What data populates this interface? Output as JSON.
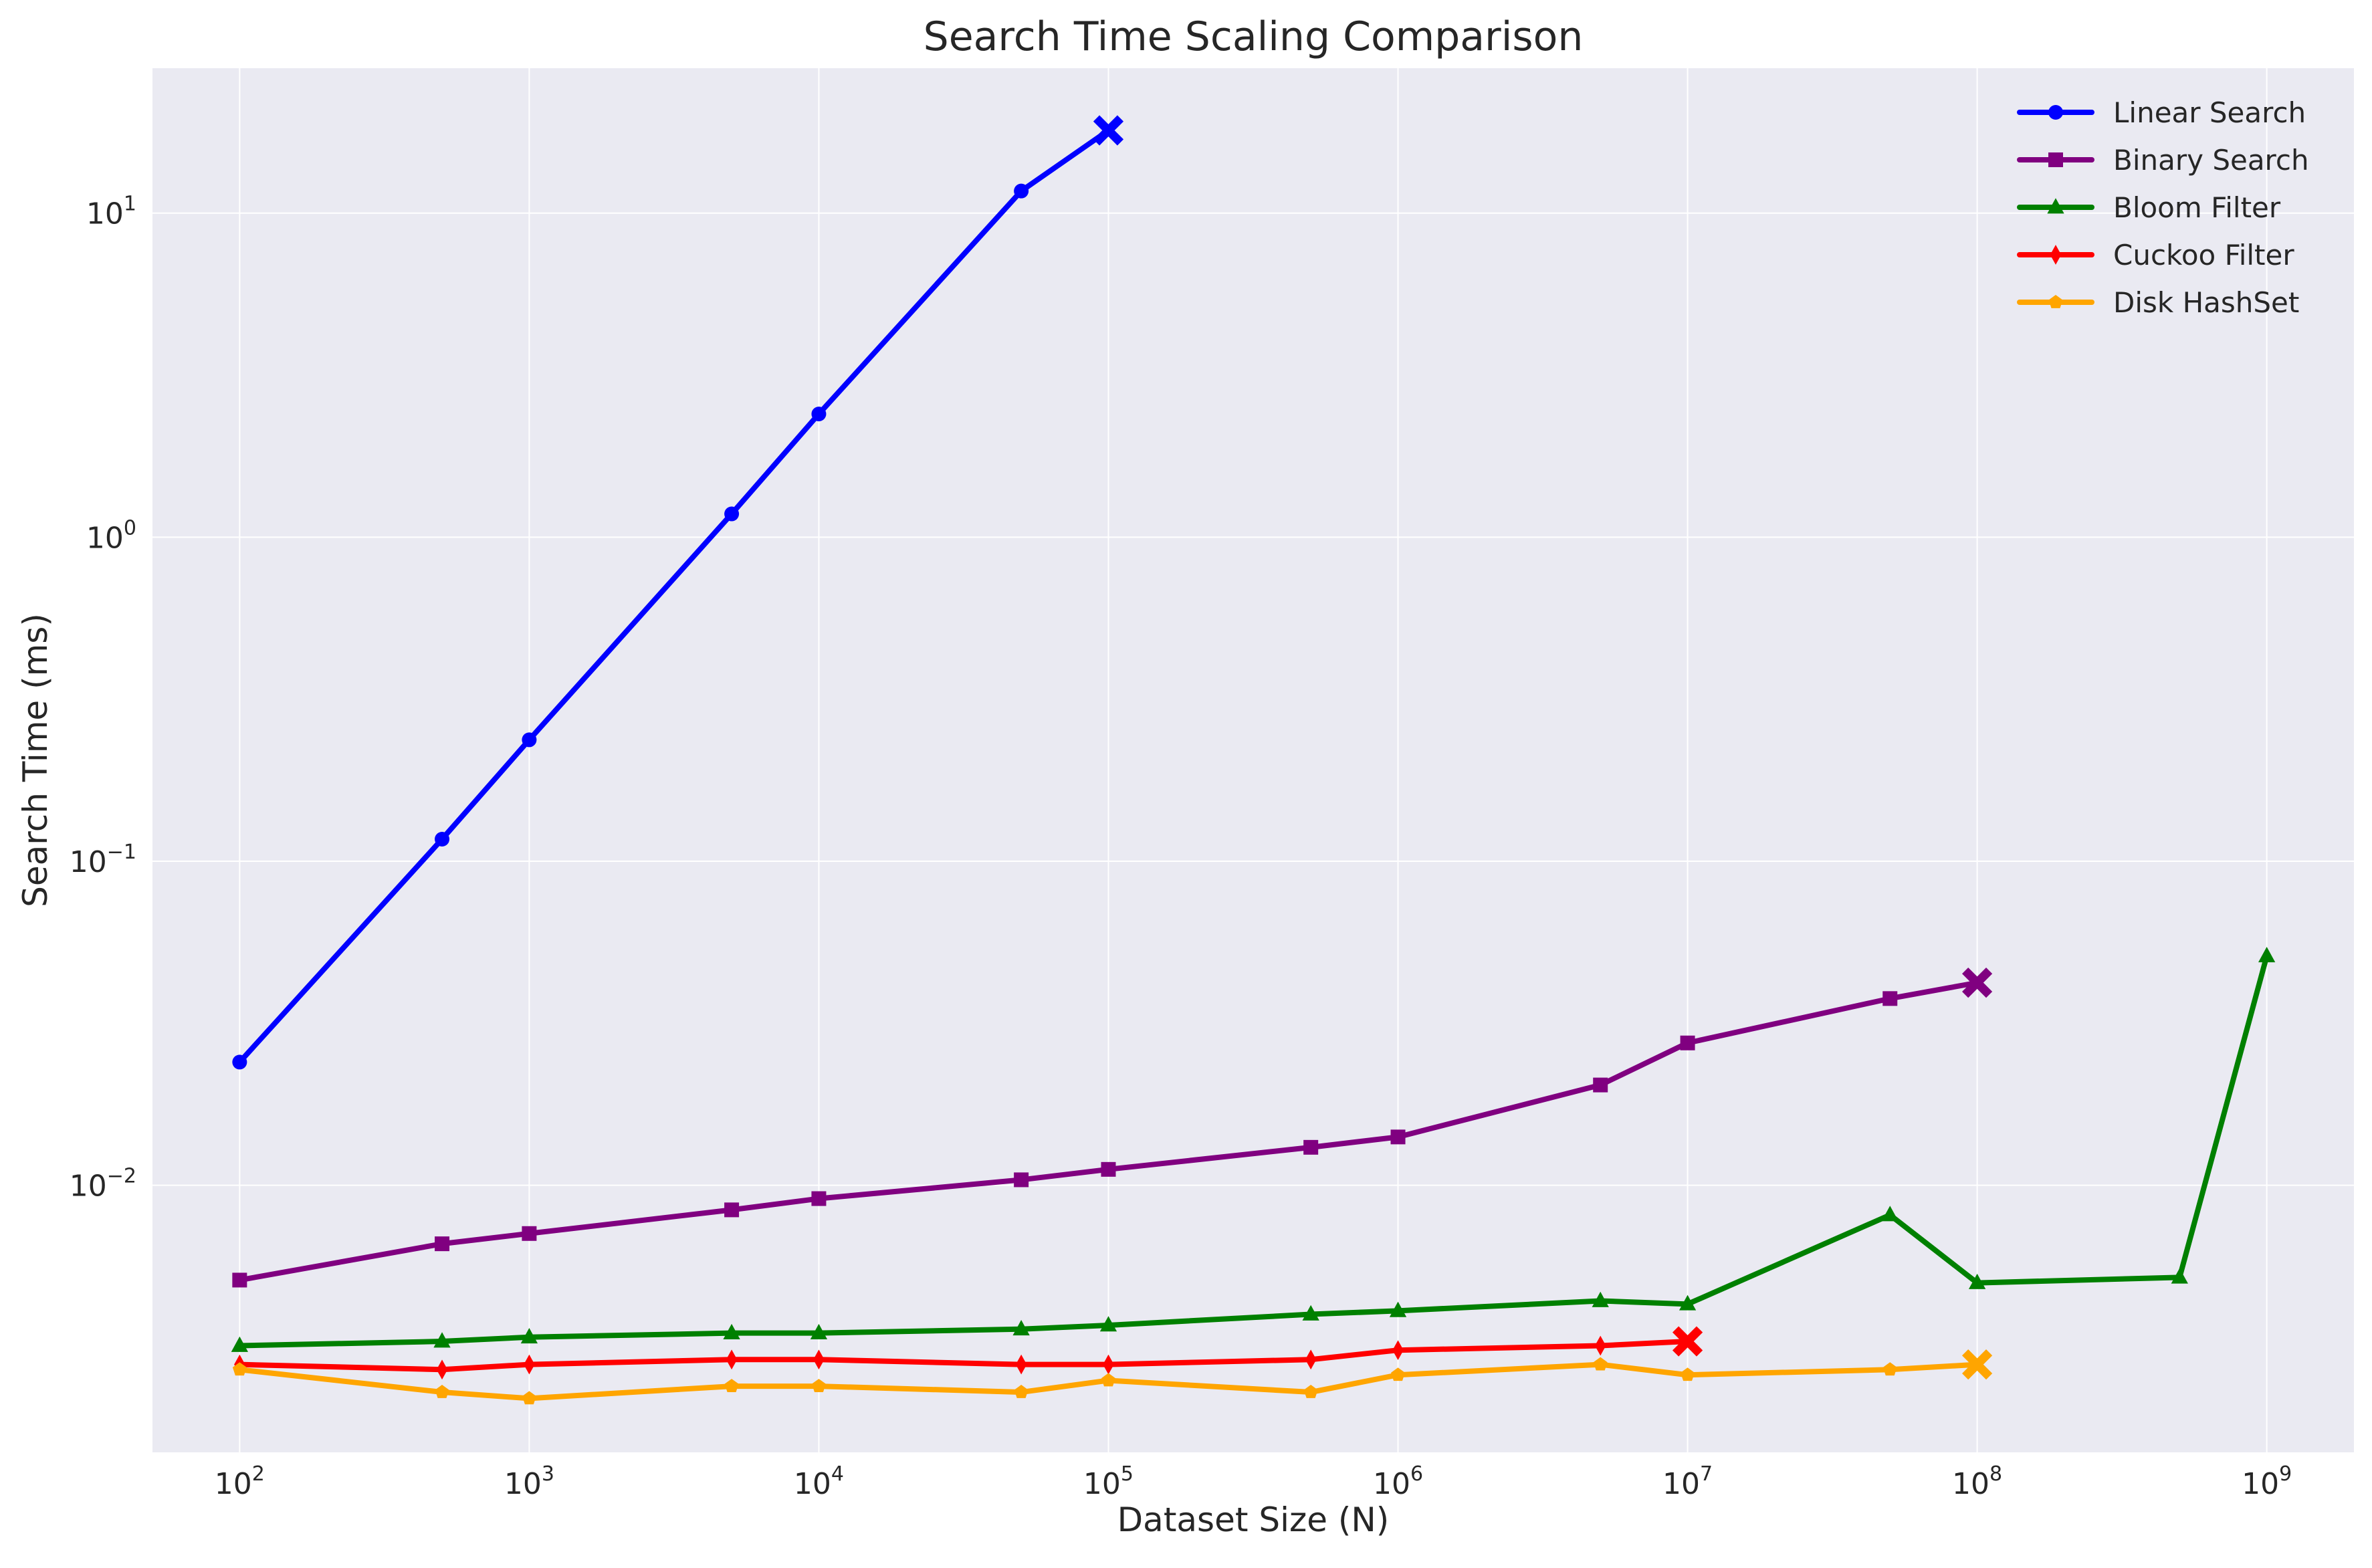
{
  "chart_data": {
    "type": "line",
    "title": "Search Time Scaling Comparison",
    "xlabel": "Dataset Size (N)",
    "ylabel": "Search Time (ms)",
    "xscale": "log",
    "yscale": "log",
    "xlim": [
      50,
      2000000000
    ],
    "ylim": [
      0.0015,
      28
    ],
    "grid": true,
    "legend_position": "top-right",
    "x_ticks": [
      {
        "base": "10",
        "exp": "2",
        "value": 100
      },
      {
        "base": "10",
        "exp": "3",
        "value": 1000
      },
      {
        "base": "10",
        "exp": "4",
        "value": 10000
      },
      {
        "base": "10",
        "exp": "5",
        "value": 100000
      },
      {
        "base": "10",
        "exp": "6",
        "value": 1000000
      },
      {
        "base": "10",
        "exp": "7",
        "value": 10000000
      },
      {
        "base": "10",
        "exp": "8",
        "value": 100000000
      },
      {
        "base": "10",
        "exp": "9",
        "value": 1000000000
      }
    ],
    "y_ticks": [
      {
        "base": "10",
        "exp": "−2",
        "value": 0.01
      },
      {
        "base": "10",
        "exp": "−1",
        "value": 0.1
      },
      {
        "base": "10",
        "exp": "0",
        "value": 1
      },
      {
        "base": "10",
        "exp": "1",
        "value": 10
      }
    ],
    "series": [
      {
        "name": "Linear Search",
        "color": "#0000ff",
        "marker": "circle",
        "x": [
          100,
          500,
          1000,
          5000,
          10000,
          50000
        ],
        "y": [
          0.024,
          0.117,
          0.237,
          1.18,
          2.4,
          11.7
        ],
        "last_point": [
          100000,
          18.0
        ]
      },
      {
        "name": "Binary Search",
        "color": "#800080",
        "marker": "square",
        "x": [
          100,
          500,
          1000,
          5000,
          10000,
          50000,
          100000,
          500000,
          1000000,
          5000000,
          10000000,
          50000000
        ],
        "y": [
          0.0051,
          0.0066,
          0.0071,
          0.0084,
          0.0091,
          0.0104,
          0.0112,
          0.0131,
          0.0141,
          0.0204,
          0.0275,
          0.0377
        ],
        "last_point": [
          100000000,
          0.0422
        ]
      },
      {
        "name": "Bloom Filter",
        "color": "#008000",
        "marker": "triangle",
        "x": [
          100,
          500,
          1000,
          5000,
          10000,
          50000,
          100000,
          500000,
          1000000,
          5000000,
          10000000,
          50000000,
          100000000,
          500000000,
          1000000000
        ],
        "y": [
          0.0032,
          0.0033,
          0.0034,
          0.0035,
          0.0035,
          0.0036,
          0.0037,
          0.004,
          0.0041,
          0.0044,
          0.0043,
          0.0081,
          0.005,
          0.0052,
          0.051
        ]
      },
      {
        "name": "Cuckoo Filter",
        "color": "#ff0000",
        "marker": "diamond",
        "x": [
          100,
          500,
          1000,
          5000,
          10000,
          50000,
          100000,
          500000,
          1000000,
          5000000
        ],
        "y": [
          0.0028,
          0.0027,
          0.0028,
          0.0029,
          0.0029,
          0.0028,
          0.0028,
          0.0029,
          0.0031,
          0.0032
        ],
        "last_point": [
          10000000,
          0.0033
        ]
      },
      {
        "name": "Disk HashSet",
        "color": "#ffa500",
        "marker": "pentagon",
        "x": [
          100,
          500,
          1000,
          5000,
          10000,
          50000,
          100000,
          500000,
          1000000,
          5000000,
          10000000,
          50000000
        ],
        "y": [
          0.0027,
          0.0023,
          0.0022,
          0.0024,
          0.0024,
          0.0023,
          0.0025,
          0.0023,
          0.0026,
          0.0028,
          0.0026,
          0.0027
        ],
        "last_point": [
          100000000,
          0.0028
        ]
      }
    ]
  }
}
